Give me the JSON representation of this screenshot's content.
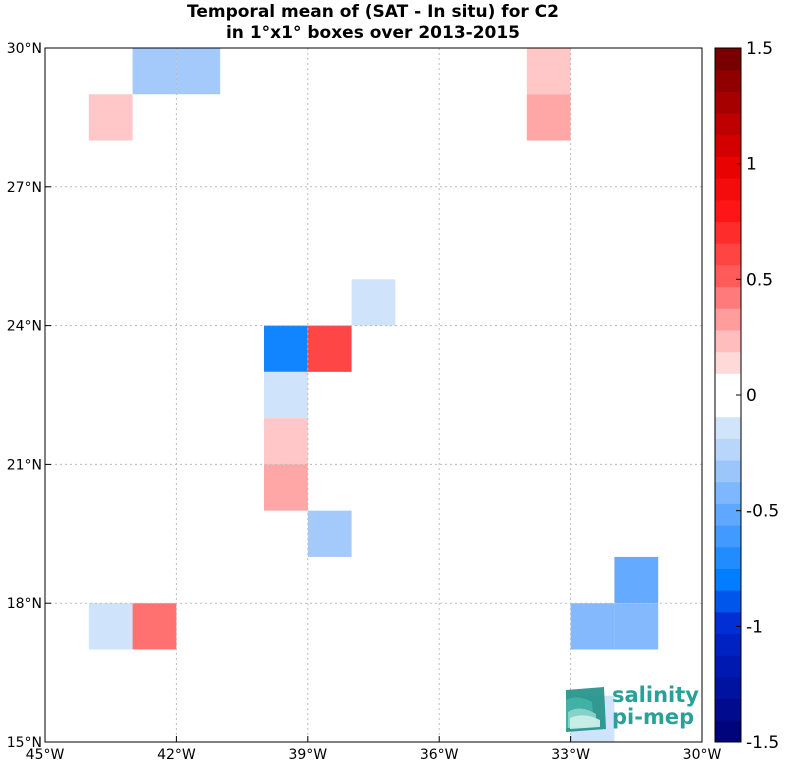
{
  "chart_data": {
    "type": "heatmap",
    "title_lines": [
      "Temporal mean of (SAT - In situ) for C2",
      "in 1°x1° boxes over 2013-2015"
    ],
    "x_ticks": [
      {
        "value": -45,
        "label": "45°W"
      },
      {
        "value": -42,
        "label": "42°W"
      },
      {
        "value": -39,
        "label": "39°W"
      },
      {
        "value": -36,
        "label": "36°W"
      },
      {
        "value": -33,
        "label": "33°W"
      },
      {
        "value": -30,
        "label": "30°W"
      }
    ],
    "y_ticks": [
      {
        "value": 15,
        "label": "15°N"
      },
      {
        "value": 18,
        "label": "18°N"
      },
      {
        "value": 21,
        "label": "21°N"
      },
      {
        "value": 24,
        "label": "24°N"
      },
      {
        "value": 27,
        "label": "27°N"
      },
      {
        "value": 30,
        "label": "30°N"
      }
    ],
    "xlim": [
      -45,
      -30
    ],
    "ylim": [
      15,
      30
    ],
    "grid": true,
    "colorbar": {
      "range": [
        -1.5,
        1.5
      ],
      "levels": 32,
      "ticks": [
        {
          "value": 1.5,
          "label": "1.5"
        },
        {
          "value": 1.0,
          "label": "1"
        },
        {
          "value": 0.5,
          "label": "0.5"
        },
        {
          "value": 0.0,
          "label": "0"
        },
        {
          "value": -0.5,
          "label": "-0.5"
        },
        {
          "value": -1.0,
          "label": "-1"
        },
        {
          "value": -1.5,
          "label": "-1.5"
        }
      ]
    },
    "cells": [
      {
        "lon": -43,
        "lat": 29,
        "value": -0.3
      },
      {
        "lon": -42,
        "lat": 29,
        "value": -0.3
      },
      {
        "lon": -44,
        "lat": 28,
        "value": 0.2
      },
      {
        "lon": -34,
        "lat": 29,
        "value": 0.2
      },
      {
        "lon": -34,
        "lat": 28,
        "value": 0.3
      },
      {
        "lon": -38,
        "lat": 24,
        "value": -0.15
      },
      {
        "lon": -40,
        "lat": 23,
        "value": -0.75
      },
      {
        "lon": -39,
        "lat": 23,
        "value": 0.6
      },
      {
        "lon": -40,
        "lat": 22,
        "value": -0.15
      },
      {
        "lon": -40,
        "lat": 21,
        "value": 0.2
      },
      {
        "lon": -40,
        "lat": 20,
        "value": 0.3
      },
      {
        "lon": -39,
        "lat": 19,
        "value": -0.3
      },
      {
        "lon": -32,
        "lat": 18,
        "value": -0.5
      },
      {
        "lon": -33,
        "lat": 17,
        "value": -0.4
      },
      {
        "lon": -32,
        "lat": 17,
        "value": -0.4
      },
      {
        "lon": -44,
        "lat": 17,
        "value": -0.15
      },
      {
        "lon": -43,
        "lat": 17,
        "value": 0.45
      },
      {
        "lon": -33,
        "lat": 15,
        "value": -0.15
      }
    ]
  },
  "logo": {
    "line1": "salinity",
    "line2": "pi-mep"
  },
  "colors": {
    "grid": "#bbbbbb",
    "axis": "#000000",
    "logo": "#2aa198"
  }
}
